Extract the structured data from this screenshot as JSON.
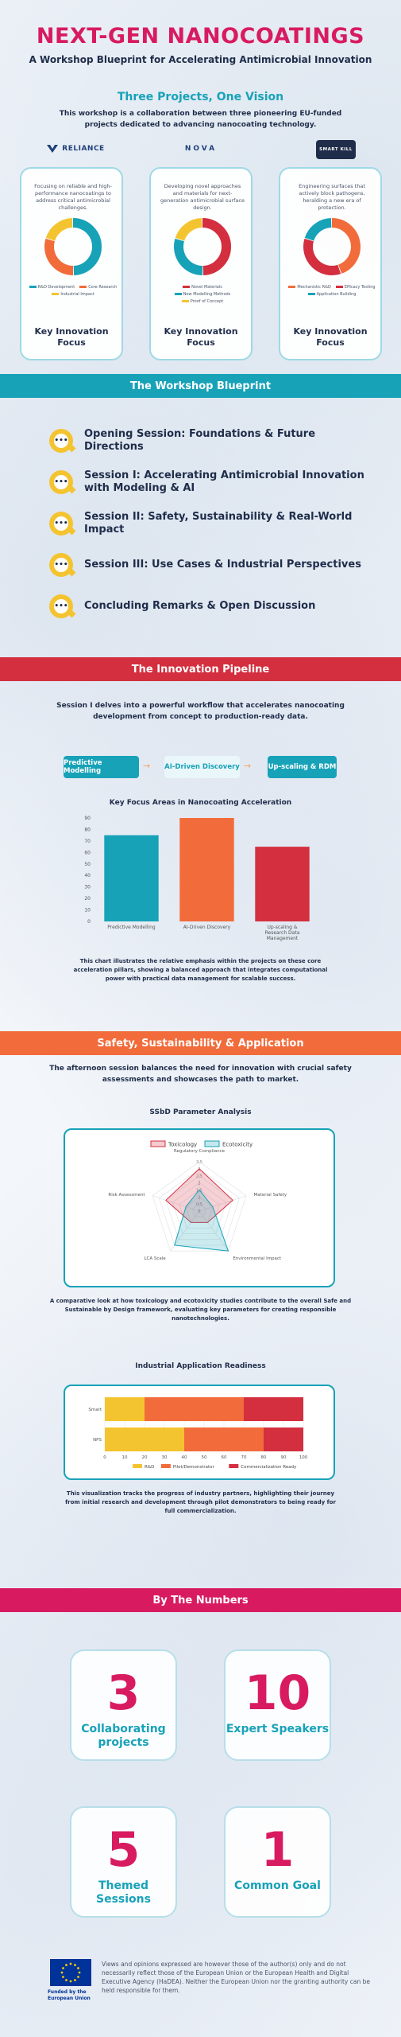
{
  "header": {
    "title": "NEXT-GEN NANOCOATINGS",
    "subtitle": "A Workshop Blueprint for Accelerating Antimicrobial Innovation"
  },
  "projects": {
    "heading": "Three Projects, One Vision",
    "intro": "This workshop is a collaboration between three pioneering EU-funded projects dedicated to advancing nanocoating technology.",
    "cards": [
      {
        "logo": "RELIANCE",
        "description": "Focusing on reliable and high-performance nanocoatings to address critical antimicrobial challenges.",
        "segments": [
          {
            "label": "R&D Development",
            "value": 50,
            "color": "#17a2b8"
          },
          {
            "label": "Core Research",
            "value": 30,
            "color": "#f26b3a"
          },
          {
            "label": "Industrial Impact",
            "value": 20,
            "color": "#f4c430"
          }
        ],
        "key_label": "Key Innovation Focus"
      },
      {
        "logo": "NOVA",
        "description": "Developing novel approaches and materials for next-generation antimicrobial surface design.",
        "segments": [
          {
            "label": "Novel Materials",
            "value": 50,
            "color": "#d32f3f"
          },
          {
            "label": "New Modelling Methods",
            "value": 30,
            "color": "#17a2b8"
          },
          {
            "label": "Proof of Concept",
            "value": 20,
            "color": "#f4c430"
          }
        ],
        "key_label": "Key Innovation Focus"
      },
      {
        "logo": "SMART KILL",
        "description": "Engineering surfaces that actively block pathogens, heralding a new era of protection.",
        "segments": [
          {
            "label": "Mechanistic R&D",
            "value": 45,
            "color": "#f26b3a"
          },
          {
            "label": "Efficacy Testing",
            "value": 35,
            "color": "#d32f3f"
          },
          {
            "label": "Application Building",
            "value": 20,
            "color": "#17a2b8"
          }
        ],
        "key_label": "Key Innovation Focus"
      }
    ]
  },
  "blueprint": {
    "heading": "The Workshop Blueprint",
    "items": [
      "Opening Session: Foundations & Future Directions",
      "Session I: Accelerating Antimicrobial Innovation with Modeling & AI",
      "Session II: Safety, Sustainability & Real-World Impact",
      "Session III: Use Cases & Industrial Perspectives",
      "Concluding Remarks & Open Discussion"
    ]
  },
  "pipeline": {
    "heading": "The Innovation Pipeline",
    "intro": "Session I delves into a powerful workflow that accelerates nanocoating development from concept to production-ready data.",
    "steps": [
      "Predictive Modelling",
      "AI-Driven Discovery",
      "Up-scaling & RDM"
    ],
    "caption": "This chart illustrates the relative emphasis within the projects on these core acceleration pillars, showing a balanced approach that integrates computational power with practical data management for scalable success."
  },
  "safety": {
    "heading": "Safety, Sustainability & Application",
    "intro": "The afternoon session balances the need for innovation with crucial safety assessments and showcases the path to market.",
    "radar_caption": "A comparative look at how toxicology and ecotoxicity studies contribute to the overall Safe and Sustainable by Design framework, evaluating key parameters for creating responsible nanotechnologies.",
    "bar_caption": "This visualization tracks the progress of industry partners, highlighting their journey from initial research and development through pilot demonstrators to being ready for full commercialization."
  },
  "numbers": {
    "heading": "By The Numbers",
    "cards": [
      {
        "value": "3",
        "label": "Collaborating projects"
      },
      {
        "value": "10",
        "label": "Expert Speakers"
      },
      {
        "value": "5",
        "label": "Themed Sessions"
      },
      {
        "value": "1",
        "label": "Common Goal"
      }
    ]
  },
  "footer": {
    "eu_label": "Funded by the European Union",
    "disclaimer": "Views and opinions expressed are however those of the author(s) only and do not necessarily reflect those of the European Union or the European Health and Digital Executive Agency (HaDEA). Neither the European Union nor the granting authority can be held responsible for them."
  },
  "colors": {
    "pink": "#d81b60",
    "teal": "#17a2b8",
    "orange": "#f26b3a",
    "red": "#d32f3f",
    "yellow": "#f4c430",
    "navy": "#1f2d4a"
  },
  "chart_data": [
    {
      "type": "bar",
      "title": "Key Focus Areas in Nanocoating Acceleration",
      "categories": [
        "Predictive Modelling",
        "AI-Driven Discovery",
        "Up-scaling & Research Data Management"
      ],
      "values": [
        75,
        90,
        65
      ],
      "colors": [
        "#17a2b8",
        "#f26b3a",
        "#d32f3f"
      ],
      "ylim": [
        0,
        90
      ],
      "yticks": [
        0,
        10,
        20,
        30,
        40,
        50,
        60,
        70,
        80,
        90
      ]
    },
    {
      "type": "radar",
      "title": "SSbD Parameter Analysis",
      "axes": [
        "Regulatory Compliance",
        "Material Safety",
        "Environmental Impact",
        "LCA Scale",
        "Risk Assessment"
      ],
      "rticks": [
        0,
        0.5,
        1,
        1.5,
        2,
        2.5,
        3,
        3.5
      ],
      "rlim": [
        0,
        3.5
      ],
      "series": [
        {
          "name": "Toxicology",
          "values": [
            3.0,
            2.5,
            1.0,
            1.0,
            2.5
          ],
          "color": "#d32f3f"
        },
        {
          "name": "Ecotoxicity",
          "values": [
            1.5,
            1.0,
            3.5,
            3.0,
            1.0
          ],
          "color": "#17a2b8"
        }
      ],
      "legend": "top"
    },
    {
      "type": "bar",
      "orientation": "horizontal",
      "stacked": true,
      "title": "Industrial Application Readiness",
      "categories": [
        "Smart",
        "NPS"
      ],
      "series": [
        {
          "name": "R&D",
          "values": [
            20,
            40
          ],
          "color": "#f4c430"
        },
        {
          "name": "Pilot/Demonstrator",
          "values": [
            50,
            40
          ],
          "color": "#f26b3a"
        },
        {
          "name": "Commercialization Ready",
          "values": [
            30,
            20
          ],
          "color": "#d32f3f"
        }
      ],
      "xlim": [
        0,
        100
      ],
      "xticks": [
        0,
        10,
        20,
        30,
        40,
        50,
        60,
        70,
        80,
        90,
        100
      ],
      "legend": "bottom"
    }
  ]
}
